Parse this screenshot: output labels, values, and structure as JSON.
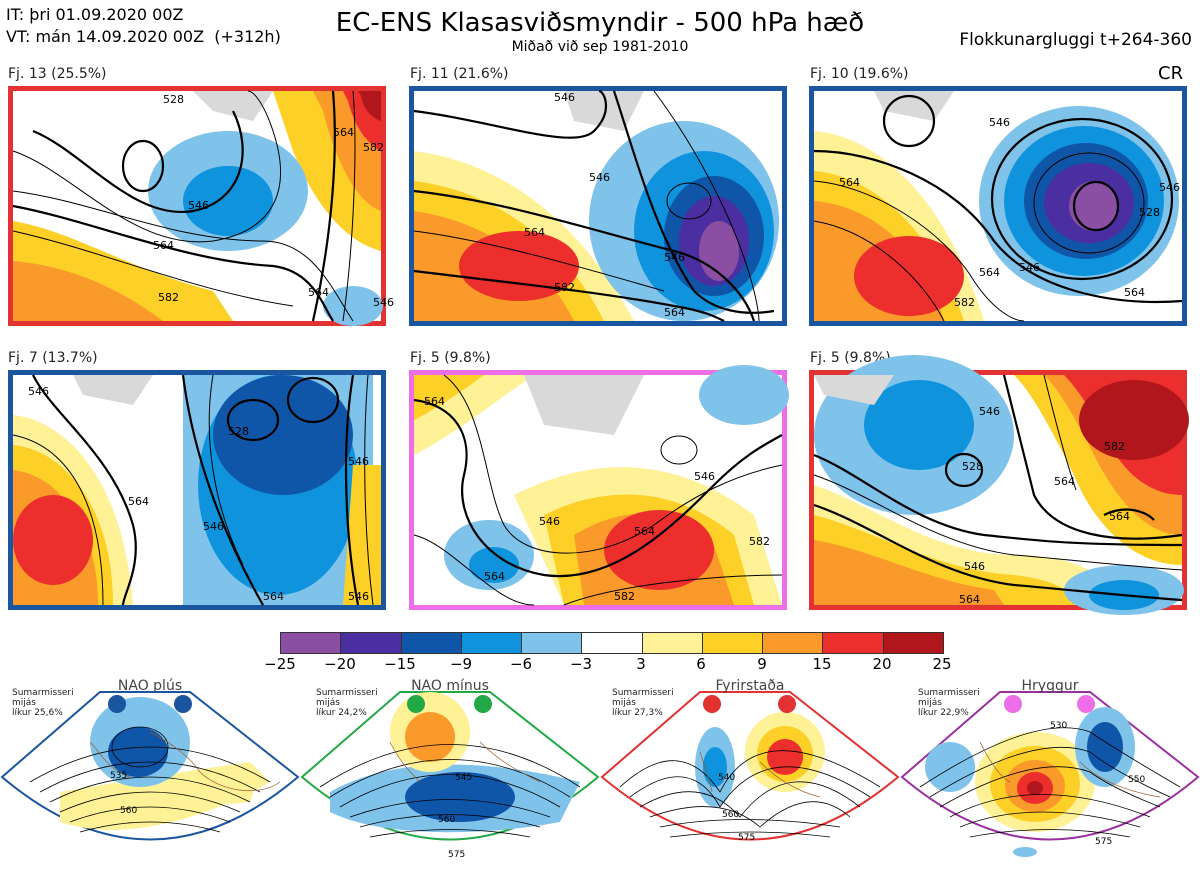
{
  "header": {
    "it_line": "IT: þri 01.09.2020 00Z",
    "vt_line": "VT: mán 14.09.2020 00Z  (+312h)",
    "title": "EC-ENS Klasasviðsmyndir - 500 hPa hæð",
    "subtitle": "Miðað við sep 1981-2010",
    "window": "Flokkunargluggi t+264-360",
    "cr": "CR"
  },
  "panels": [
    {
      "label": "Fj. 13 (25.5%)",
      "border": "#e23232",
      "contours": [
        "528",
        "546",
        "564",
        "564",
        "582",
        "564",
        "582",
        "546"
      ]
    },
    {
      "label": "Fj. 11 (21.6%)",
      "border": "#1a55a0",
      "contours": [
        "546",
        "564",
        "582",
        "546",
        "546",
        "564"
      ]
    },
    {
      "label": "Fj. 10 (19.6%)",
      "border": "#1a55a0",
      "contours": [
        "546",
        "564",
        "564",
        "546",
        "528",
        "582",
        "564",
        "546"
      ]
    },
    {
      "label": "Fj. 7 (13.7%)",
      "border": "#1a55a0",
      "contours": [
        "546",
        "528",
        "546",
        "564",
        "546",
        "564",
        "546"
      ]
    },
    {
      "label": "Fj. 5 (9.8%)",
      "border": "#ee6ee8",
      "contours": [
        "564",
        "546",
        "546",
        "564",
        "564",
        "582",
        "582"
      ]
    },
    {
      "label": "Fj. 5 (9.8%)",
      "border": "#e23232",
      "contours": [
        "546",
        "528",
        "564",
        "582",
        "564",
        "546",
        "564"
      ]
    }
  ],
  "colorbar": {
    "colors": [
      "#8a4ea3",
      "#4b2fa0",
      "#0f56a8",
      "#0f93dc",
      "#7fc3eb",
      "#ffffff",
      "#fff196",
      "#fdd027",
      "#fa9a2a",
      "#ec2f2c",
      "#b0161c"
    ],
    "ticks": [
      "−25",
      "−20",
      "−15",
      "−9",
      "−6",
      "−3",
      "3",
      "6",
      "9",
      "15",
      "20",
      "25"
    ]
  },
  "regimes": [
    {
      "title": "NAO plús",
      "color": "#1a55a0",
      "info": "Sumarmisseri\nmijás\nlíkur 25,6%",
      "contours": [
        "535",
        "560"
      ]
    },
    {
      "title": "NAO mínus",
      "color": "#22a845",
      "info": "Sumarmisseri\nmijás\nlíkur 24,2%",
      "contours": [
        "545",
        "560",
        "575"
      ]
    },
    {
      "title": "Fyrirstaða",
      "color": "#e23232",
      "info": "Sumarmisseri\nmijás\nlíkur 27,3%",
      "contours": [
        "540",
        "560",
        "575"
      ]
    },
    {
      "title": "Hryggur",
      "color": "#9a2fa0",
      "info": "Sumarmisseri\nmijás\nlíkur 22,9%",
      "contours": [
        "530",
        "550",
        "575"
      ]
    }
  ]
}
